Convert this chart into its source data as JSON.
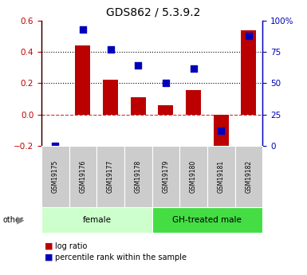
{
  "title": "GDS862 / 5.3.9.2",
  "samples": [
    "GSM19175",
    "GSM19176",
    "GSM19177",
    "GSM19178",
    "GSM19179",
    "GSM19180",
    "GSM19181",
    "GSM19182"
  ],
  "log_ratio": [
    0.0,
    0.44,
    0.22,
    0.11,
    0.06,
    0.155,
    -0.26,
    0.54
  ],
  "percentile_rank": [
    0.0,
    93.0,
    77.0,
    64.0,
    50.0,
    62.0,
    12.0,
    88.0
  ],
  "bar_color": "#bb0000",
  "dot_color": "#0000bb",
  "ylim_left": [
    -0.2,
    0.6
  ],
  "ylim_right": [
    0,
    100
  ],
  "yticks_left": [
    -0.2,
    0.0,
    0.2,
    0.4,
    0.6
  ],
  "yticks_right": [
    0,
    25,
    50,
    75,
    100
  ],
  "yticklabels_right": [
    "0",
    "25",
    "50",
    "75",
    "100%"
  ],
  "hlines": [
    0.4,
    0.2
  ],
  "groups": [
    {
      "label": "female",
      "start": 0,
      "end": 3,
      "color": "#ccffcc"
    },
    {
      "label": "GH-treated male",
      "start": 4,
      "end": 7,
      "color": "#44dd44"
    }
  ],
  "legend_bar_label": "log ratio",
  "legend_dot_label": "percentile rank within the sample",
  "zero_line_color": "#bb0000",
  "sample_box_color": "#cccccc",
  "title_fontsize": 10,
  "tick_fontsize": 7.5,
  "sample_fontsize": 5.5,
  "group_fontsize": 7.5,
  "legend_fontsize": 7,
  "arrow_color": "#888888"
}
